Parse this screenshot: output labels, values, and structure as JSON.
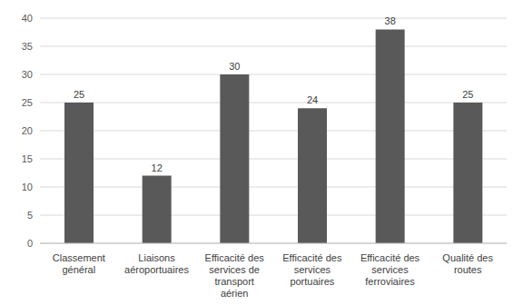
{
  "chart_data": {
    "type": "bar",
    "categories": [
      "Classement général",
      "Liaisons aéroportuaires",
      "Efficacité des services de transport aérien",
      "Efficacité des services portuaires",
      "Efficacité des services ferroviaires",
      "Qualité des routes"
    ],
    "values": [
      25,
      12,
      30,
      24,
      38,
      25
    ],
    "color": "#595959",
    "ylim": [
      0,
      40
    ],
    "yticks": [
      0,
      5,
      10,
      15,
      20,
      25,
      30,
      35,
      40
    ],
    "grid": true,
    "data_labels": true
  }
}
